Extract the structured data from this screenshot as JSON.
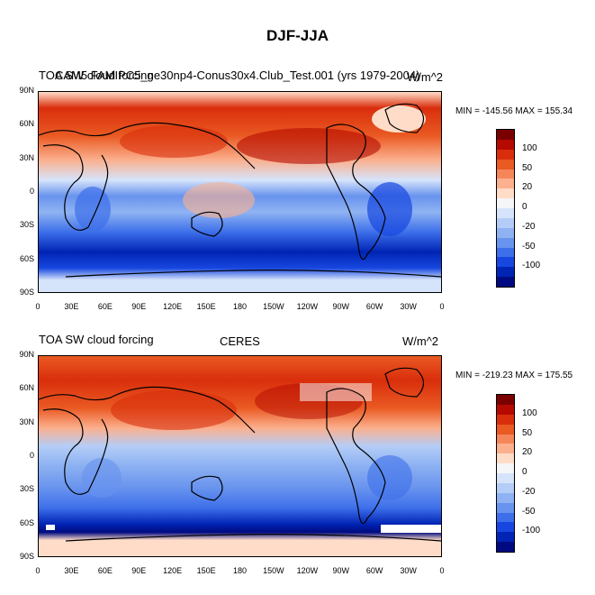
{
  "title": "DJF-JJA",
  "panels": [
    {
      "left_title_a": "TOA SW cloud forcing",
      "left_title_b": "CAM5 FAMIPC5_ne30np4-Conus30x4.Club_Test.001 (yrs 1979-2004)",
      "center_title": "",
      "units": "W/m^2",
      "min_max": "MIN = -145.56 MAX = 155.34"
    },
    {
      "left_title_a": "TOA SW cloud forcing",
      "left_title_b": "",
      "center_title": "CERES",
      "units": "W/m^2",
      "min_max": "MIN = -219.23 MAX = 175.55"
    }
  ],
  "lat_ticks": [
    "90N",
    "60N",
    "30N",
    "0",
    "30S",
    "60S",
    "90S"
  ],
  "lon_ticks": [
    "0",
    "30E",
    "60E",
    "90E",
    "120E",
    "150E",
    "180",
    "150W",
    "120W",
    "90W",
    "60W",
    "30W",
    "0"
  ],
  "colorbar_labels": [
    "100",
    "50",
    "20",
    "0",
    "-20",
    "-50",
    "-100"
  ],
  "colorbar_colors": [
    "#7a0000",
    "#b40a00",
    "#d92e0c",
    "#ea5a23",
    "#f5865a",
    "#fbb08e",
    "#fedcc8",
    "#f4f6f8",
    "#d6e4fb",
    "#b4cdf7",
    "#8fb3f2",
    "#6893ee",
    "#3d6fea",
    "#1747e0",
    "#0024b4",
    "#000a80"
  ]
}
